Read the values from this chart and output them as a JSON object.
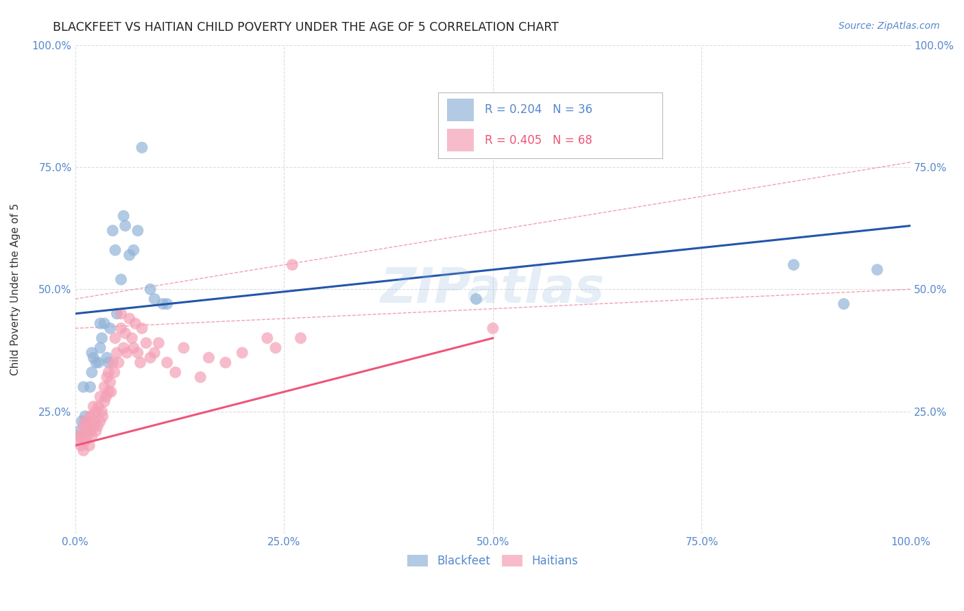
{
  "title": "BLACKFEET VS HAITIAN CHILD POVERTY UNDER THE AGE OF 5 CORRELATION CHART",
  "source": "Source: ZipAtlas.com",
  "ylabel": "Child Poverty Under the Age of 5",
  "watermark": "ZIPatlas",
  "blackfeet_R": 0.204,
  "blackfeet_N": 36,
  "haitian_R": 0.405,
  "haitian_N": 68,
  "blackfeet_color": "#92B4D8",
  "haitian_color": "#F4A0B5",
  "blackfeet_line_color": "#2255AA",
  "haitian_line_color": "#EE5577",
  "ci_color": "#EE8899",
  "blackfeet_x": [
    0.005,
    0.008,
    0.01,
    0.012,
    0.015,
    0.018,
    0.02,
    0.02,
    0.022,
    0.025,
    0.028,
    0.03,
    0.03,
    0.032,
    0.035,
    0.038,
    0.04,
    0.042,
    0.045,
    0.048,
    0.05,
    0.055,
    0.058,
    0.06,
    0.065,
    0.07,
    0.075,
    0.08,
    0.09,
    0.095,
    0.105,
    0.11,
    0.48,
    0.86,
    0.92,
    0.96
  ],
  "blackfeet_y": [
    0.21,
    0.23,
    0.3,
    0.24,
    0.22,
    0.3,
    0.33,
    0.37,
    0.36,
    0.35,
    0.35,
    0.38,
    0.43,
    0.4,
    0.43,
    0.36,
    0.35,
    0.42,
    0.62,
    0.58,
    0.45,
    0.52,
    0.65,
    0.63,
    0.57,
    0.58,
    0.62,
    0.79,
    0.5,
    0.48,
    0.47,
    0.47,
    0.48,
    0.55,
    0.47,
    0.54
  ],
  "haitian_x": [
    0.003,
    0.005,
    0.007,
    0.008,
    0.01,
    0.01,
    0.012,
    0.012,
    0.013,
    0.015,
    0.015,
    0.017,
    0.018,
    0.018,
    0.02,
    0.02,
    0.022,
    0.022,
    0.023,
    0.025,
    0.025,
    0.027,
    0.028,
    0.03,
    0.03,
    0.032,
    0.033,
    0.035,
    0.035,
    0.037,
    0.038,
    0.04,
    0.04,
    0.042,
    0.043,
    0.045,
    0.047,
    0.048,
    0.05,
    0.052,
    0.055,
    0.055,
    0.058,
    0.06,
    0.062,
    0.065,
    0.068,
    0.07,
    0.072,
    0.075,
    0.078,
    0.08,
    0.085,
    0.09,
    0.095,
    0.1,
    0.11,
    0.12,
    0.13,
    0.15,
    0.16,
    0.18,
    0.2,
    0.23,
    0.24,
    0.26,
    0.27,
    0.5
  ],
  "haitian_y": [
    0.2,
    0.19,
    0.18,
    0.2,
    0.17,
    0.22,
    0.19,
    0.23,
    0.21,
    0.2,
    0.22,
    0.18,
    0.24,
    0.21,
    0.2,
    0.24,
    0.22,
    0.26,
    0.23,
    0.21,
    0.25,
    0.22,
    0.26,
    0.23,
    0.28,
    0.25,
    0.24,
    0.3,
    0.27,
    0.28,
    0.32,
    0.29,
    0.33,
    0.31,
    0.29,
    0.35,
    0.33,
    0.4,
    0.37,
    0.35,
    0.42,
    0.45,
    0.38,
    0.41,
    0.37,
    0.44,
    0.4,
    0.38,
    0.43,
    0.37,
    0.35,
    0.42,
    0.39,
    0.36,
    0.37,
    0.39,
    0.35,
    0.33,
    0.38,
    0.32,
    0.36,
    0.35,
    0.37,
    0.4,
    0.38,
    0.55,
    0.4,
    0.42
  ],
  "xlim": [
    0,
    1.0
  ],
  "ylim": [
    0,
    1.0
  ],
  "xticks": [
    0.0,
    0.25,
    0.5,
    0.75,
    1.0
  ],
  "yticks": [
    0.0,
    0.25,
    0.5,
    0.75,
    1.0
  ],
  "xticklabels": [
    "0.0%",
    "25.0%",
    "50.0%",
    "75.0%",
    "100.0%"
  ],
  "left_yticklabels": [
    "",
    "25.0%",
    "50.0%",
    "75.0%",
    "100.0%"
  ],
  "right_yticklabels": [
    "",
    "25.0%",
    "50.0%",
    "75.0%",
    "100.0%"
  ],
  "title_fontsize": 12.5,
  "axis_label_fontsize": 11,
  "tick_fontsize": 11,
  "source_fontsize": 10,
  "watermark_fontsize": 52,
  "watermark_color": "#99BBDD",
  "watermark_alpha": 0.25,
  "background_color": "#FFFFFF",
  "grid_color": "#DDDDDD",
  "title_color": "#222222",
  "tick_color": "#5588CC",
  "axis_label_color": "#333333"
}
